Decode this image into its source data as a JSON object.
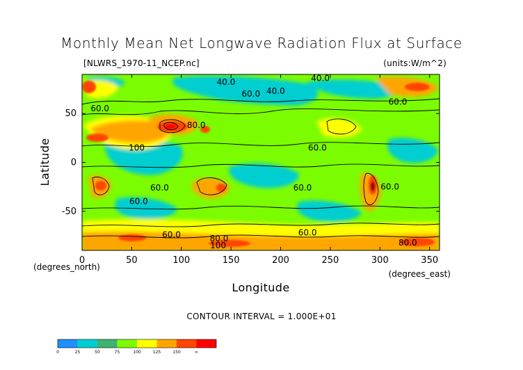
{
  "chart_data": {
    "type": "heatmap",
    "title": "Monthly Mean Net Longwave Radiation Flux at Surface",
    "source_label": "[NLWRS_1970-11_NCEP.nc]",
    "units_label": "(units:W/m^2)",
    "xlabel": "Longitude",
    "ylabel": "Latitude",
    "x_unit_label": "(degrees_east)",
    "y_unit_label": "(degrees_north)",
    "xlim": [
      0,
      360
    ],
    "ylim": [
      -90,
      90
    ],
    "x_ticks": [
      {
        "value": 0,
        "label": "0"
      },
      {
        "value": 50,
        "label": "50"
      },
      {
        "value": 100,
        "label": "100"
      },
      {
        "value": 150,
        "label": "150"
      },
      {
        "value": 200,
        "label": "200"
      },
      {
        "value": 250,
        "label": "250"
      },
      {
        "value": 300,
        "label": "300"
      },
      {
        "value": 350,
        "label": "350"
      }
    ],
    "y_ticks": [
      {
        "value": 50,
        "label": "50"
      },
      {
        "value": 0,
        "label": "0"
      },
      {
        "value": -50,
        "label": "-50"
      }
    ],
    "contour_interval_label": "CONTOUR INTERVAL = 1.000E+01",
    "contour_labels": [
      {
        "lon": 145,
        "lat": 82,
        "text": "40.0"
      },
      {
        "lon": 240,
        "lat": 86,
        "text": "40.0"
      },
      {
        "lon": 195,
        "lat": 73,
        "text": "40.0"
      },
      {
        "lon": 170,
        "lat": 70,
        "text": "60.0"
      },
      {
        "lon": 318,
        "lat": 62,
        "text": "60.0"
      },
      {
        "lon": 18,
        "lat": 55,
        "text": "60.0"
      },
      {
        "lon": 115,
        "lat": 38,
        "text": "80.0"
      },
      {
        "lon": 55,
        "lat": 15,
        "text": "100"
      },
      {
        "lon": 237,
        "lat": 15,
        "text": "60.0"
      },
      {
        "lon": 57,
        "lat": -40,
        "text": "60.0"
      },
      {
        "lon": 78,
        "lat": -26,
        "text": "60.0"
      },
      {
        "lon": 222,
        "lat": -26,
        "text": "60.0"
      },
      {
        "lon": 310,
        "lat": -25,
        "text": "60.0"
      },
      {
        "lon": 90,
        "lat": -74,
        "text": "60.0"
      },
      {
        "lon": 227,
        "lat": -72,
        "text": "60.0"
      },
      {
        "lon": 138,
        "lat": -78,
        "text": "80.0"
      },
      {
        "lon": 137,
        "lat": -85,
        "text": "100"
      },
      {
        "lon": 328,
        "lat": -82,
        "text": "80.0"
      },
      {
        "lon": 107,
        "lat": -95,
        "text": "100"
      }
    ],
    "colorbar": {
      "colors": [
        "#1e90ff",
        "#00ced1",
        "#3cb371",
        "#7cfc00",
        "#ffff00",
        "#ffa500",
        "#ff4500",
        "#ff0000"
      ],
      "tick_labels": [
        "0",
        "25",
        "50",
        "75",
        "100",
        "125",
        "150",
        "∞"
      ]
    },
    "grid": false,
    "legend": "bottom-left colorbar"
  }
}
